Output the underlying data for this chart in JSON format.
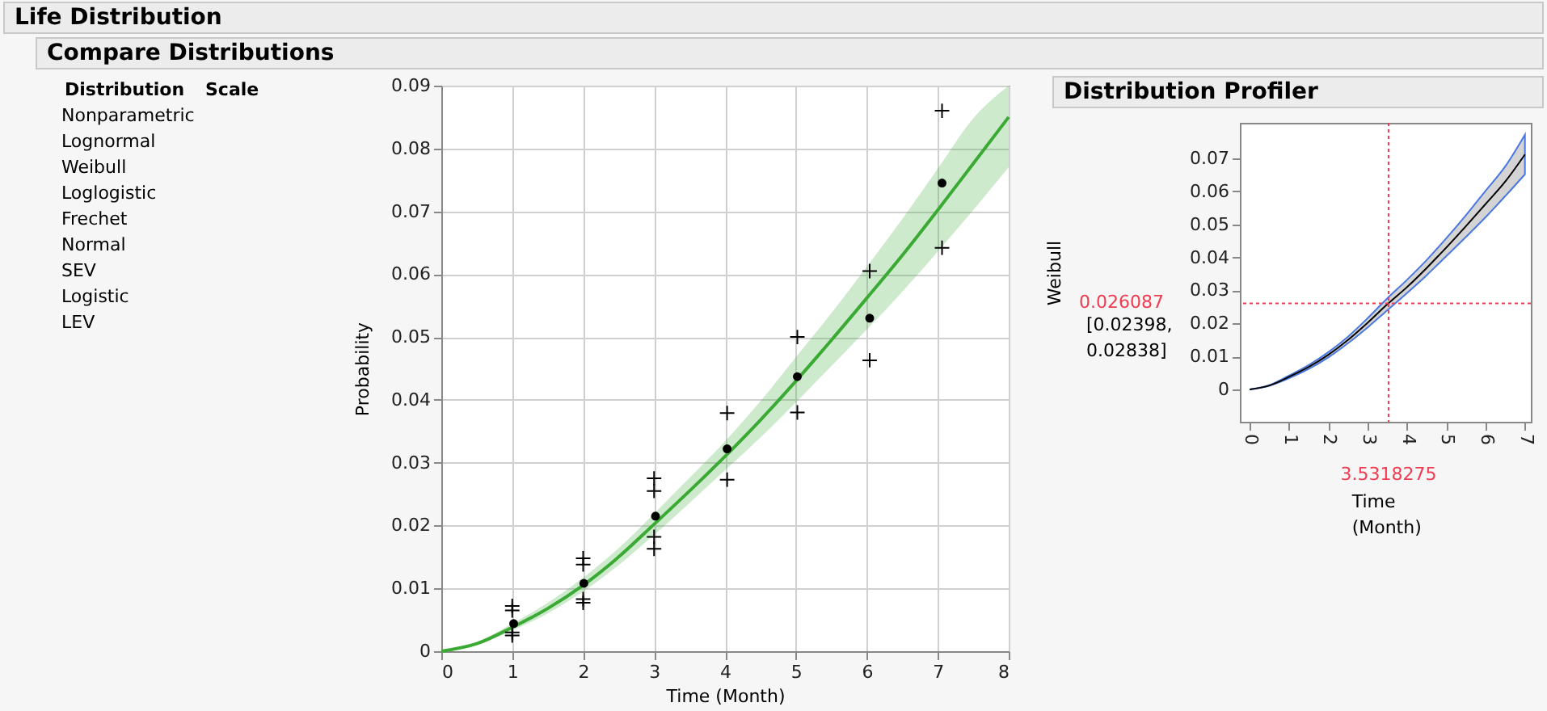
{
  "chart_data": [
    {
      "type": "other",
      "title": "Life Distribution",
      "subtitle": "Compare Distributions",
      "annotations": [
        "Distribution",
        "Scale",
        "Nonparametric",
        "Lognormal",
        "Weibull",
        "Loglogistic",
        "Frechet",
        "Normal",
        "SEV",
        "Logistic",
        "LEV"
      ]
    },
    {
      "type": "line",
      "xlabel": "Time (Month)",
      "ylabel": "Probability",
      "xlim": [
        0,
        8
      ],
      "ylim": [
        0,
        0.09
      ],
      "xticks": [
        0,
        1,
        2,
        3,
        4,
        5,
        6,
        7,
        8
      ],
      "yticks": [
        0,
        0.01,
        0.02,
        0.03,
        0.04,
        0.05,
        0.06,
        0.07,
        0.08,
        0.09
      ],
      "grid": true,
      "series": [
        {
          "type": "line",
          "color": "#3aaa35",
          "marker": "none",
          "x": [
            0,
            0.5,
            1,
            1.5,
            2,
            2.5,
            3,
            3.5,
            4,
            4.5,
            5,
            5.5,
            6,
            6.5,
            7,
            7.5,
            8
          ],
          "values": [
            0,
            0.0012,
            0.0038,
            0.0068,
            0.0105,
            0.015,
            0.0202,
            0.0255,
            0.031,
            0.0368,
            0.043,
            0.0495,
            0.0562,
            0.063,
            0.0702,
            0.0776,
            0.085
          ],
          "lower": [
            0,
            0.001,
            0.0033,
            0.006,
            0.0095,
            0.0137,
            0.0185,
            0.0236,
            0.0288,
            0.034,
            0.0396,
            0.0454,
            0.0512,
            0.0572,
            0.0636,
            0.0702,
            0.077
          ],
          "upper": [
            0,
            0.0014,
            0.0044,
            0.0077,
            0.0117,
            0.0164,
            0.0219,
            0.0276,
            0.0334,
            0.0398,
            0.0468,
            0.0538,
            0.0612,
            0.0688,
            0.0768,
            0.0848,
            0.09
          ]
        },
        {
          "type": "scatter",
          "color": "#000000",
          "marker": "circle",
          "x": [
            1.02,
            2.01,
            3.02,
            4.03,
            5.02,
            6.04,
            7.06
          ],
          "values": [
            0.0044,
            0.0108,
            0.0215,
            0.0322,
            0.0437,
            0.053,
            0.0745
          ]
        },
        {
          "type": "scatter",
          "color": "#000000",
          "marker": "cross",
          "x": [
            1,
            1,
            1,
            1,
            2,
            2,
            2,
            2,
            3,
            3,
            3,
            3,
            4.03,
            4.03,
            5.02,
            5.02,
            6.04,
            6.04,
            7.06,
            7.06
          ],
          "values": [
            0.0072,
            0.0065,
            0.003,
            0.0025,
            0.0148,
            0.0138,
            0.0083,
            0.0077,
            0.0275,
            0.0255,
            0.0182,
            0.0163,
            0.0379,
            0.0273,
            0.05,
            0.038,
            0.0605,
            0.0463,
            0.086,
            0.0642
          ]
        }
      ]
    },
    {
      "type": "line",
      "title": "Distribution Profiler",
      "xlabel": "Time (Month)",
      "ylabel": "Weibull",
      "xlim": [
        -0.25,
        7.15
      ],
      "ylim": [
        -0.0098,
        0.0808
      ],
      "xticks": [
        0,
        1,
        2,
        3,
        4,
        5,
        6,
        7
      ],
      "yticks": [
        0,
        0.01,
        0.02,
        0.03,
        0.04,
        0.05,
        0.06,
        0.07
      ],
      "grid": false,
      "annotations": [
        "[0.02398, 0.02838]"
      ],
      "ref_lines": [
        {
          "axis": "x",
          "value": 3.5318275,
          "label": "3.5318275",
          "color": "#f03c50",
          "line_style": "dotted"
        },
        {
          "axis": "y",
          "value": 0.026087,
          "label": "0.026087",
          "color": "#f03c50",
          "line_style": "dotted"
        }
      ],
      "series": [
        {
          "type": "line",
          "color": "#000000",
          "marker": "none",
          "x": [
            0,
            0.5,
            1,
            1.5,
            2,
            2.5,
            3,
            3.5,
            4,
            4.5,
            5,
            5.5,
            6,
            6.5,
            7
          ],
          "values": [
            0,
            0.0012,
            0.0038,
            0.0068,
            0.0105,
            0.015,
            0.0202,
            0.0258,
            0.031,
            0.0368,
            0.043,
            0.0495,
            0.0562,
            0.063,
            0.0712
          ],
          "lower": [
            0,
            0.0011,
            0.0034,
            0.0062,
            0.0097,
            0.014,
            0.0188,
            0.024,
            0.0292,
            0.0346,
            0.0404,
            0.0462,
            0.0522,
            0.0586,
            0.0652
          ],
          "upper": [
            0,
            0.0013,
            0.0042,
            0.0074,
            0.0113,
            0.016,
            0.0216,
            0.0276,
            0.0332,
            0.0392,
            0.0458,
            0.0528,
            0.0602,
            0.0676,
            0.0772
          ]
        }
      ]
    }
  ]
}
